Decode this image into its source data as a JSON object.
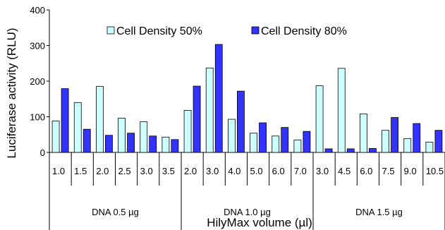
{
  "chart_data": {
    "type": "bar",
    "title": "",
    "ylabel": "Luciferase activity (RLU)",
    "xlabel": "HilyMax volume (µl)",
    "ylim": [
      0,
      400
    ],
    "yticks": [
      "0",
      "100",
      "200",
      "300",
      "400"
    ],
    "groups": [
      {
        "label": "DNA 0.5 µg",
        "count": 6
      },
      {
        "label": "DNA 1.0 µg",
        "count": 6
      },
      {
        "label": "DNA 1.5 µg",
        "count": 6
      }
    ],
    "categories": [
      "1.0",
      "1.5",
      "2.0",
      "2.5",
      "3.0",
      "3.5",
      "2.0",
      "3.0",
      "4.0",
      "5.0",
      "6.0",
      "7.0",
      "3.0",
      "4.5",
      "6.0",
      "7.5",
      "9.0",
      "10.5"
    ],
    "series": [
      {
        "name": "Cell Density 50%",
        "color": "#ccffff",
        "values": [
          88,
          140,
          185,
          96,
          86,
          43,
          118,
          237,
          93,
          54,
          46,
          35,
          187,
          236,
          108,
          62,
          39,
          29
        ]
      },
      {
        "name": "Cell Density 80%",
        "color": "#3333ff",
        "values": [
          179,
          65,
          48,
          54,
          46,
          36,
          186,
          303,
          172,
          83,
          70,
          59,
          10,
          10,
          11,
          98,
          81,
          62
        ]
      }
    ],
    "legend_position": "top",
    "grid": false
  }
}
